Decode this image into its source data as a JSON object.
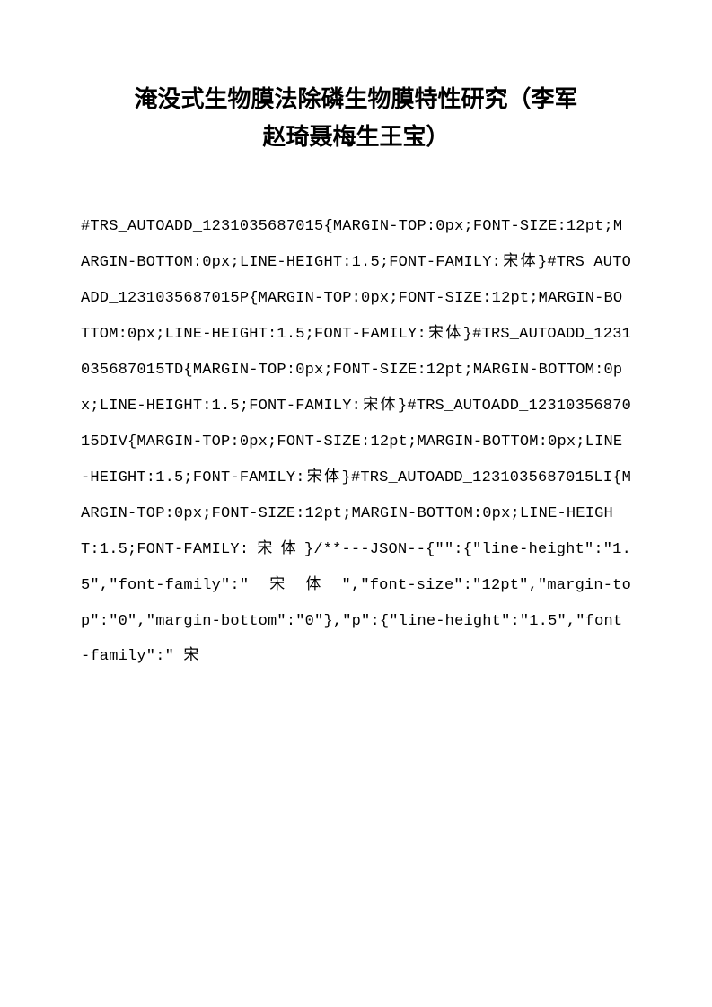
{
  "title_line1": "淹没式生物膜法除磷生物膜特性研究（李军",
  "title_line2": "赵琦聂梅生王宝）",
  "body_text": "#TRS_AUTOADD_1231035687015{MARGIN-TOP:0px;FONT-SIZE:12pt;MARGIN-BOTTOM:0px;LINE-HEIGHT:1.5;FONT-FAMILY:宋体}#TRS_AUTOADD_1231035687015P{MARGIN-TOP:0px;FONT-SIZE:12pt;MARGIN-BOTTOM:0px;LINE-HEIGHT:1.5;FONT-FAMILY:宋体}#TRS_AUTOADD_1231035687015TD{MARGIN-TOP:0px;FONT-SIZE:12pt;MARGIN-BOTTOM:0px;LINE-HEIGHT:1.5;FONT-FAMILY:宋体}#TRS_AUTOADD_1231035687015DIV{MARGIN-TOP:0px;FONT-SIZE:12pt;MARGIN-BOTTOM:0px;LINE-HEIGHT:1.5;FONT-FAMILY:宋体}#TRS_AUTOADD_1231035687015LI{MARGIN-TOP:0px;FONT-SIZE:12pt;MARGIN-BOTTOM:0px;LINE-HEIGHT:1.5;FONT-FAMILY:宋体}/**---JSON--{\"\":{\"line-height\":\"1.5\",\"font-family\":\"宋体\",\"font-size\":\"12pt\",\"margin-top\":\"0\",\"margin-bottom\":\"0\"},\"p\":{\"line-height\":\"1.5\",\"font-family\":\" 宋"
}
